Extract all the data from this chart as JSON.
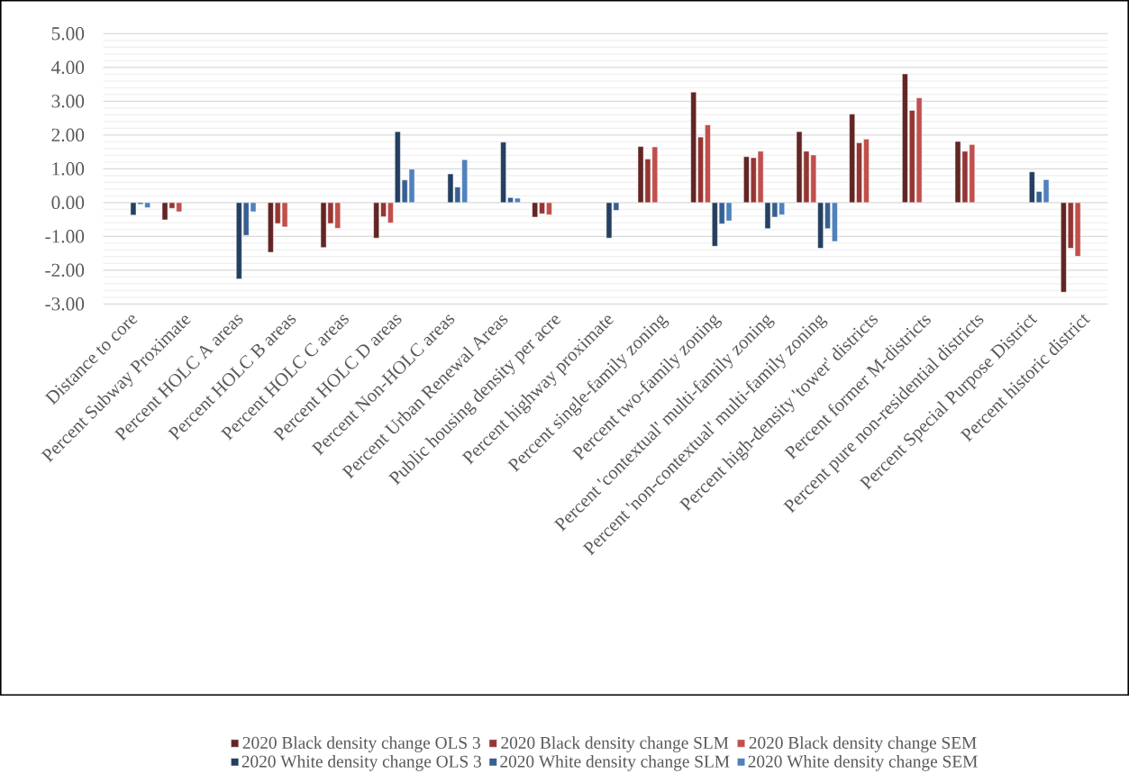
{
  "chart_data": {
    "type": "bar",
    "categories": [
      "Distance to core",
      "Percent Subway Proximate",
      "Percent HOLC A areas",
      "Percent HOLC B areas",
      "Percent HOLC C areas",
      "Percent HOLC D areas",
      "Percent Non-HOLC areas",
      "Percent Urban Renewal Areas",
      "Public housing density per acre",
      "Percent highway proximate",
      "Percent single-family zoning",
      "Percent two-family zoning",
      "Percent 'contextual' multi-family zoning",
      "Percent 'non-contextual' multi-family zoning",
      "Percent high-density 'tower' districts",
      "Percent former M-districts",
      "Percent pure non-residential districts",
      "Percent Special Purpose District",
      "Percent historic district"
    ],
    "series": [
      {
        "name": "2020 Black density change  OLS 3",
        "color": "#632523",
        "values": [
          null,
          -0.51,
          null,
          -1.47,
          -1.33,
          -1.05,
          null,
          null,
          -0.43,
          null,
          1.66,
          3.27,
          1.36,
          2.1,
          2.62,
          3.81,
          1.81,
          null,
          -2.65
        ]
      },
      {
        "name": "2020 Black density change  SLM",
        "color": "#943634",
        "values": [
          null,
          -0.17,
          null,
          -0.62,
          -0.62,
          -0.42,
          null,
          null,
          -0.33,
          null,
          1.29,
          1.94,
          1.33,
          1.52,
          1.77,
          2.73,
          1.52,
          null,
          -1.35
        ]
      },
      {
        "name": "2020 Black density change  SEM",
        "color": "#c0504d",
        "values": [
          null,
          -0.27,
          null,
          -0.72,
          -0.76,
          -0.6,
          null,
          null,
          -0.36,
          null,
          1.65,
          2.3,
          1.52,
          1.41,
          1.88,
          3.1,
          1.72,
          null,
          -1.59
        ]
      },
      {
        "name": "2020 White density change OLS 3",
        "color": "#243f60",
        "values": [
          -0.37,
          null,
          -2.26,
          null,
          null,
          2.1,
          0.85,
          1.79,
          null,
          -1.05,
          null,
          -1.29,
          -0.77,
          -1.35,
          null,
          null,
          null,
          0.91,
          null
        ]
      },
      {
        "name": "2020 White density change SLM",
        "color": "#376092",
        "values": [
          -0.05,
          null,
          -0.97,
          null,
          null,
          0.67,
          0.46,
          0.15,
          null,
          -0.23,
          null,
          -0.63,
          -0.43,
          -0.77,
          null,
          null,
          null,
          0.33,
          null
        ]
      },
      {
        "name": "2020 White density change SEM",
        "color": "#4f81bd",
        "values": [
          -0.15,
          null,
          -0.27,
          null,
          null,
          0.99,
          1.27,
          0.13,
          null,
          null,
          null,
          -0.54,
          -0.36,
          -1.15,
          null,
          null,
          null,
          0.68,
          null
        ]
      }
    ],
    "ylim": [
      -3,
      5
    ],
    "yticks": [
      {
        "value": -3,
        "label": "-3.00"
      },
      {
        "value": -2,
        "label": "-2.00"
      },
      {
        "value": -1,
        "label": "-1.00"
      },
      {
        "value": 0,
        "label": "0.00"
      },
      {
        "value": 1,
        "label": "1.00"
      },
      {
        "value": 2,
        "label": "2.00"
      },
      {
        "value": 3,
        "label": "3.00"
      },
      {
        "value": 4,
        "label": "4.00"
      },
      {
        "value": 5,
        "label": "5.00"
      }
    ],
    "grid": "y",
    "legend": "bottom"
  }
}
